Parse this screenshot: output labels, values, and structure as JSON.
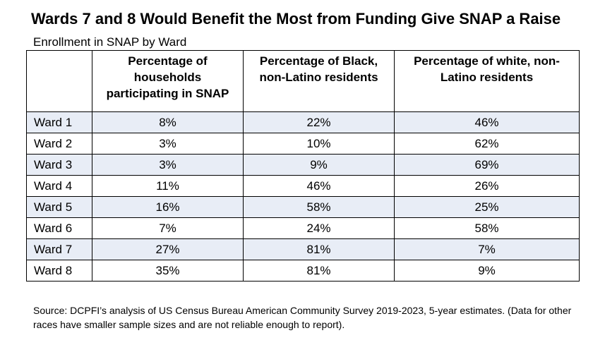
{
  "title": "Wards 7 and 8 Would Benefit the Most from Funding Give SNAP a Raise",
  "subtitle": "Enrollment in SNAP by Ward",
  "source": "Source: DCPFI’s analysis of US Census Bureau American Community Survey 2019-2023, 5-year estimates. (Data for other races have smaller sample sizes and are not reliable enough to report).",
  "colors": {
    "shaded_row": "#e8edf6",
    "border": "#000000"
  },
  "chart_data": {
    "type": "table",
    "title": "Wards 7 and 8 Would Benefit the Most from Funding Give SNAP a Raise",
    "subtitle": "Enrollment in SNAP by Ward",
    "columns": [
      "",
      "Percentage of households participating in SNAP",
      "Percentage of Black, non-Latino residents",
      "Percentage of white, non-Latino residents"
    ],
    "rows": [
      [
        "Ward 1",
        "8%",
        "22%",
        "46%"
      ],
      [
        "Ward 2",
        "3%",
        "10%",
        "62%"
      ],
      [
        "Ward 3",
        "3%",
        "9%",
        "69%"
      ],
      [
        "Ward 4",
        "11%",
        "46%",
        "26%"
      ],
      [
        "Ward 5",
        "16%",
        "58%",
        "25%"
      ],
      [
        "Ward 6",
        "7%",
        "24%",
        "58%"
      ],
      [
        "Ward 7",
        "27%",
        "81%",
        "7%"
      ],
      [
        "Ward 8",
        "35%",
        "81%",
        "9%"
      ]
    ]
  }
}
